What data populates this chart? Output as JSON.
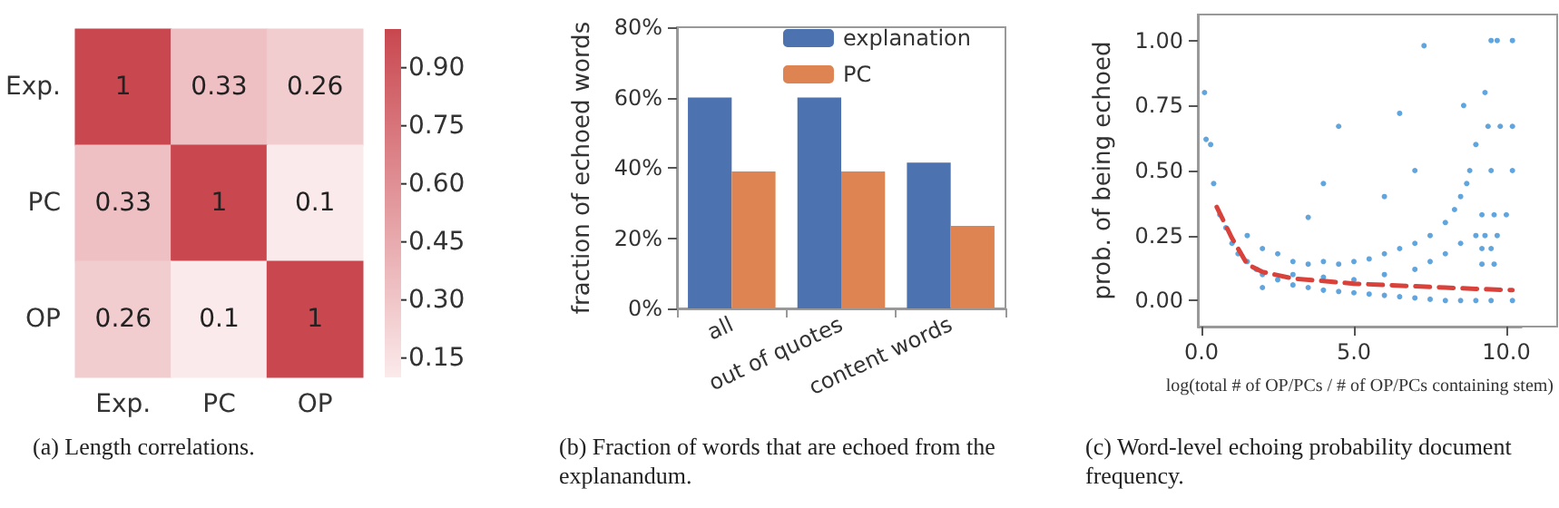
{
  "chart_data": [
    {
      "type": "heatmap",
      "categories": [
        "Exp.",
        "PC",
        "OP"
      ],
      "y_categories": [
        "Exp.",
        "PC",
        "OP"
      ],
      "cells": [
        [
          1,
          0.33,
          0.26
        ],
        [
          0.33,
          1,
          0.1
        ],
        [
          0.26,
          0.1,
          1
        ]
      ],
      "clim": [
        0.1,
        1
      ],
      "cticks": [
        {
          "value": 0.15,
          "label": "0.15"
        },
        {
          "value": 0.3,
          "label": "0.30"
        },
        {
          "value": 0.45,
          "label": "0.45"
        },
        {
          "value": 0.6,
          "label": "0.60"
        },
        {
          "value": 0.75,
          "label": "0.75"
        },
        {
          "value": 0.9,
          "label": "0.90"
        }
      ],
      "colors": [
        "#fbeaeb",
        "#c9474f"
      ],
      "data_labels": true,
      "annotations": [
        "(a) Length correlations."
      ]
    },
    {
      "type": "bar",
      "categories": [
        "all",
        "out of quotes",
        "content words"
      ],
      "ylabel": "fraction of echoed words",
      "series": [
        {
          "name": "explanation",
          "color": "#4c72b0",
          "values": [
            60,
            60,
            41.5
          ]
        },
        {
          "name": "PC",
          "color": "#dd8452",
          "values": [
            39,
            39,
            23.5
          ]
        }
      ],
      "ylim": [
        0,
        80
      ],
      "yticks": [
        {
          "value": 0,
          "label": "0%"
        },
        {
          "value": 20,
          "label": "20%"
        },
        {
          "value": 40,
          "label": "40%"
        },
        {
          "value": 60,
          "label": "60%"
        },
        {
          "value": 80,
          "label": "80%"
        }
      ],
      "legend": "top right",
      "grid": false,
      "annotations": [
        "(b) Fraction of words that are echoed from the explanandum."
      ]
    },
    {
      "type": "scatter",
      "ylabel": "prob. of being echoed",
      "xlabel": "log(total # of OP/PCs / # of OP/PCs containing stem)",
      "series": [
        {
          "type": "scatter",
          "color": "#3a8fd6",
          "marker": "circle",
          "x": [
            0.1,
            0.15,
            0.3,
            0.4,
            0.6,
            0.8,
            1.0,
            1.2,
            1.5,
            1.8,
            2.0,
            2.5,
            3,
            3.5,
            4,
            4.5,
            5,
            5.5,
            6,
            6.5,
            7,
            7.5,
            8,
            8.5,
            9,
            9.5,
            10.2,
            1.5,
            2,
            2.5,
            3,
            3.5,
            4,
            4.5,
            5,
            5.5,
            6,
            6.5,
            7,
            7.5,
            8,
            8.3,
            8.5,
            8.7,
            8.8,
            9,
            2,
            3,
            4,
            5,
            6,
            7,
            7.5,
            8,
            8.5,
            9,
            3.5,
            4.5,
            6.5,
            7.3,
            8.6,
            9.3,
            4,
            6,
            7,
            9.5,
            9.7,
            10.2,
            9.4,
            9.8,
            10.2,
            9.5,
            10.2,
            9.2,
            9.6,
            10,
            9.3,
            9.7,
            9.2,
            9.5,
            9.2,
            9.6
          ],
          "values": [
            0.8,
            0.62,
            0.6,
            0.45,
            0.33,
            0.28,
            0.22,
            0.18,
            0.15,
            0.12,
            0.1,
            0.08,
            0.06,
            0.05,
            0.04,
            0.035,
            0.03,
            0.025,
            0.02,
            0.015,
            0.01,
            0.005,
            0,
            0,
            0,
            0,
            0,
            0.25,
            0.2,
            0.18,
            0.15,
            0.14,
            0.15,
            0.14,
            0.15,
            0.16,
            0.18,
            0.2,
            0.22,
            0.25,
            0.3,
            0.35,
            0.4,
            0.45,
            0.5,
            0.6,
            0.05,
            0.1,
            0.09,
            0.08,
            0.1,
            0.12,
            0.15,
            0.18,
            0.22,
            0.25,
            0.32,
            0.67,
            0.72,
            0.98,
            0.75,
            0.8,
            0.45,
            0.4,
            0.5,
            1,
            1,
            1,
            0.67,
            0.67,
            0.67,
            0.5,
            0.5,
            0.33,
            0.33,
            0.33,
            0.25,
            0.25,
            0.2,
            0.2,
            0.14,
            0.14
          ]
        },
        {
          "type": "line",
          "color": "#d9413b",
          "line_style": "dashed",
          "marker": "none",
          "x": [
            0.5,
            1,
            1.5,
            2,
            3,
            4,
            5,
            6,
            7,
            8,
            9,
            10.2
          ],
          "values": [
            0.36,
            0.24,
            0.14,
            0.11,
            0.085,
            0.075,
            0.065,
            0.06,
            0.055,
            0.05,
            0.045,
            0.04
          ]
        }
      ],
      "xlim": [
        -0.12,
        10.5
      ],
      "xticks": [
        {
          "value": 0,
          "label": "0.0"
        },
        {
          "value": 5,
          "label": "5.0"
        },
        {
          "value": 10,
          "label": "10.0"
        }
      ],
      "ylim": [
        -0.1,
        1.1
      ],
      "yticks": [
        {
          "value": 0,
          "label": "0.00"
        },
        {
          "value": 0.25,
          "label": "0.25"
        },
        {
          "value": 0.5,
          "label": "0.50"
        },
        {
          "value": 0.75,
          "label": "0.75"
        },
        {
          "value": 1,
          "label": "1.00"
        }
      ],
      "grid": false,
      "annotations": [
        "(c) Word-level echoing probability document frequency."
      ]
    }
  ]
}
